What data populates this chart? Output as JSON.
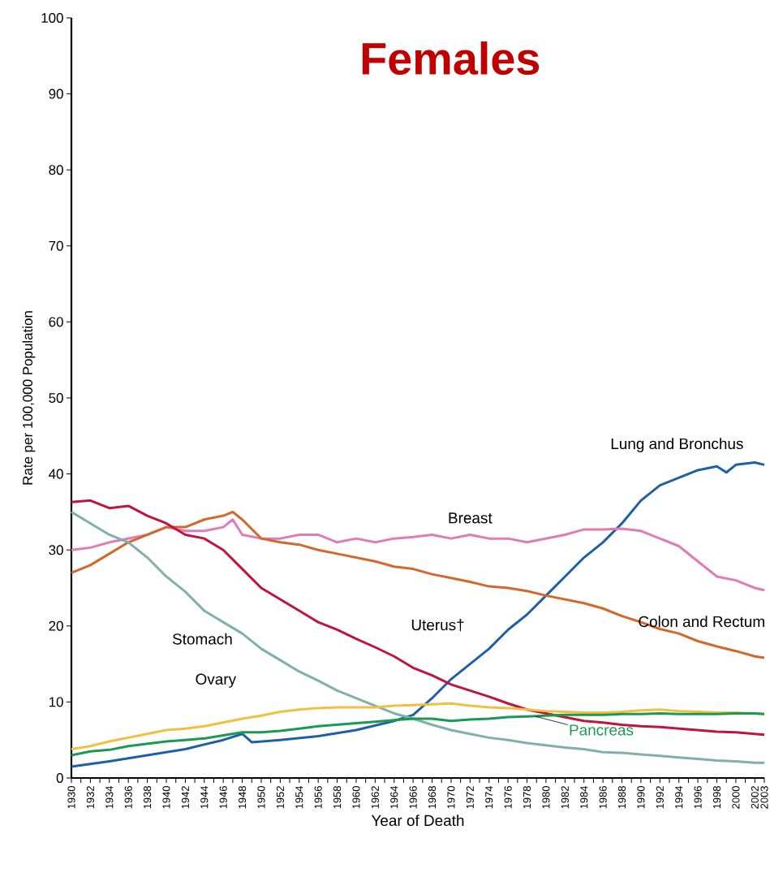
{
  "chart_data": {
    "type": "line",
    "title": "Females",
    "xlabel": "Year of Death",
    "ylabel": "Rate per 100,000 Population",
    "x": [
      1930,
      1932,
      1934,
      1936,
      1938,
      1940,
      1942,
      1944,
      1946,
      1948,
      1950,
      1952,
      1954,
      1956,
      1958,
      1960,
      1962,
      1964,
      1966,
      1968,
      1970,
      1972,
      1974,
      1976,
      1978,
      1980,
      1982,
      1984,
      1986,
      1988,
      1990,
      1992,
      1994,
      1996,
      1998,
      2000,
      2002,
      2003
    ],
    "xlim": [
      1930,
      2003
    ],
    "ylim": [
      0,
      100
    ],
    "xticks": [
      1930,
      {
        "value": 1931,
        "label": null
      },
      1932,
      {
        "value": 1933,
        "label": null
      },
      1934,
      {
        "value": 1935,
        "label": null
      },
      1936,
      {
        "value": 1937,
        "label": null
      },
      1938,
      {
        "value": 1939,
        "label": null
      },
      1940,
      {
        "value": 1941,
        "label": null
      },
      1942,
      {
        "value": 1943,
        "label": null
      },
      1944,
      {
        "value": 1945,
        "label": null
      },
      1946,
      {
        "value": 1947,
        "label": null
      },
      1948,
      {
        "value": 1949,
        "label": null
      },
      1950,
      {
        "value": 1951,
        "label": null
      },
      1952,
      {
        "value": 1953,
        "label": null
      },
      1954,
      {
        "value": 1955,
        "label": null
      },
      1956,
      {
        "value": 1957,
        "label": null
      },
      1958,
      {
        "value": 1959,
        "label": null
      },
      1960,
      {
        "value": 1961,
        "label": null
      },
      1962,
      {
        "value": 1963,
        "label": null
      },
      1964,
      {
        "value": 1965,
        "label": null
      },
      1966,
      {
        "value": 1967,
        "label": null
      },
      1968,
      {
        "value": 1969,
        "label": null
      },
      1970,
      {
        "value": 1971,
        "label": null
      },
      1972,
      {
        "value": 1973,
        "label": null
      },
      1974,
      {
        "value": 1975,
        "label": null
      },
      1976,
      {
        "value": 1977,
        "label": null
      },
      1978,
      {
        "value": 1979,
        "label": null
      },
      1980,
      {
        "value": 1981,
        "label": null
      },
      1982,
      {
        "value": 1983,
        "label": null
      },
      1984,
      {
        "value": 1985,
        "label": null
      },
      1986,
      {
        "value": 1987,
        "label": null
      },
      1988,
      {
        "value": 1989,
        "label": null
      },
      1990,
      {
        "value": 1991,
        "label": null
      },
      1992,
      {
        "value": 1993,
        "label": null
      },
      1994,
      {
        "value": 1995,
        "label": null
      },
      1996,
      {
        "value": 1997,
        "label": null
      },
      1998,
      {
        "value": 1999,
        "label": null
      },
      2000,
      {
        "value": 2001,
        "label": null
      },
      2002,
      2003
    ],
    "yticks": [
      0,
      10,
      20,
      30,
      40,
      50,
      60,
      70,
      80,
      90,
      100
    ],
    "grid": false,
    "legend": false,
    "marker": "none",
    "line_style": "solid",
    "series": [
      {
        "name": "Lung and Bronchus",
        "color": "#1f5fa8",
        "x": [
          1930,
          1934,
          1938,
          1942,
          1946,
          1948,
          1949,
          1952,
          1956,
          1960,
          1964,
          1966,
          1968,
          1970,
          1972,
          1974,
          1976,
          1978,
          1980,
          1982,
          1984,
          1986,
          1988,
          1990,
          1992,
          1994,
          1996,
          1998,
          1999,
          2000,
          2002,
          2003
        ],
        "values": [
          1.5,
          2.2,
          3,
          3.8,
          5,
          5.8,
          4.7,
          5,
          5.5,
          6.3,
          7.5,
          8.3,
          10.5,
          13,
          15,
          17,
          19.5,
          21.5,
          24,
          26.5,
          29,
          31,
          33.5,
          36.5,
          38.5,
          39.5,
          40.5,
          41,
          40.2,
          41.2,
          41.5,
          41.2
        ]
      },
      {
        "name": "Breast",
        "color": "#e07ab8",
        "x": [
          1930,
          1932,
          1934,
          1936,
          1938,
          1940,
          1942,
          1944,
          1946,
          1947,
          1948,
          1950,
          1952,
          1954,
          1956,
          1958,
          1960,
          1962,
          1964,
          1966,
          1968,
          1970,
          1972,
          1974,
          1976,
          1978,
          1980,
          1982,
          1984,
          1986,
          1988,
          1990,
          1992,
          1994,
          1996,
          1998,
          2000,
          2002,
          2003
        ],
        "values": [
          30,
          30.3,
          31,
          31.5,
          32,
          33,
          32.5,
          32.5,
          33,
          34,
          32,
          31.5,
          31.5,
          32,
          32,
          31,
          31.5,
          31,
          31.5,
          31.7,
          32,
          31.5,
          32,
          31.5,
          31.5,
          31,
          31.5,
          32,
          32.7,
          32.7,
          32.8,
          32.5,
          31.5,
          30.5,
          28.5,
          26.5,
          26,
          25,
          24.7
        ]
      },
      {
        "name": "Colon and Rectum",
        "color": "#d2692a",
        "x": [
          1930,
          1932,
          1934,
          1936,
          1938,
          1940,
          1942,
          1944,
          1946,
          1947,
          1948,
          1950,
          1952,
          1954,
          1956,
          1958,
          1960,
          1962,
          1964,
          1966,
          1968,
          1970,
          1972,
          1974,
          1976,
          1978,
          1980,
          1982,
          1984,
          1986,
          1988,
          1990,
          1992,
          1994,
          1996,
          1998,
          2000,
          2002,
          2003
        ],
        "values": [
          27,
          28,
          29.5,
          31,
          32,
          33,
          33,
          34,
          34.5,
          35,
          34,
          31.5,
          31,
          30.7,
          30,
          29.5,
          29,
          28.5,
          27.8,
          27.5,
          26.8,
          26.3,
          25.8,
          25.2,
          25,
          24.6,
          24,
          23.5,
          23,
          22.3,
          21.3,
          20.5,
          19.6,
          19,
          18,
          17.3,
          16.7,
          16,
          15.8
        ]
      },
      {
        "name": "Uterus†",
        "color": "#c0143c",
        "values": [
          36.3,
          36.5,
          35.5,
          35.8,
          34.5,
          33.5,
          32,
          31.5,
          30,
          27.5,
          25,
          23.5,
          22,
          20.5,
          19.5,
          18.3,
          17.2,
          16,
          14.5,
          13.5,
          12.3,
          11.5,
          10.7,
          9.8,
          9,
          8.5,
          8,
          7.5,
          7.3,
          7,
          6.8,
          6.7,
          6.5,
          6.3,
          6.1,
          6,
          5.8,
          5.7
        ]
      },
      {
        "name": "Stomach",
        "color": "#7fb0ae",
        "values": [
          35,
          33.5,
          32,
          31,
          29,
          26.5,
          24.5,
          22,
          20.5,
          19,
          17,
          15.5,
          14,
          12.8,
          11.5,
          10.5,
          9.5,
          8.5,
          7.8,
          7,
          6.3,
          5.8,
          5.3,
          5,
          4.6,
          4.3,
          4,
          3.8,
          3.4,
          3.3,
          3.1,
          2.9,
          2.7,
          2.5,
          2.3,
          2.2,
          2.0,
          2.0
        ]
      },
      {
        "name": "Ovary",
        "color": "#f0c040",
        "values": [
          3.8,
          4.2,
          4.8,
          5.3,
          5.8,
          6.3,
          6.5,
          6.8,
          7.3,
          7.8,
          8.2,
          8.7,
          9,
          9.2,
          9.3,
          9.3,
          9.3,
          9.5,
          9.6,
          9.7,
          9.8,
          9.5,
          9.3,
          9.2,
          9,
          8.8,
          8.7,
          8.6,
          8.6,
          8.7,
          8.9,
          9.0,
          8.8,
          8.7,
          8.6,
          8.6,
          null,
          8.4
        ]
      },
      {
        "name": "Pancreas",
        "color": "#1a9a50",
        "values": [
          3,
          3.5,
          3.7,
          4.2,
          4.5,
          4.8,
          5,
          5.2,
          5.6,
          6,
          6,
          6.2,
          6.5,
          6.8,
          7,
          7.2,
          7.4,
          7.6,
          7.8,
          7.8,
          7.5,
          7.7,
          7.8,
          8,
          8.1,
          8.2,
          8.3,
          8.3,
          8.3,
          8.4,
          8.4,
          8.5,
          8.4,
          8.4,
          8.4,
          8.5,
          8.5,
          8.4
        ]
      }
    ]
  }
}
